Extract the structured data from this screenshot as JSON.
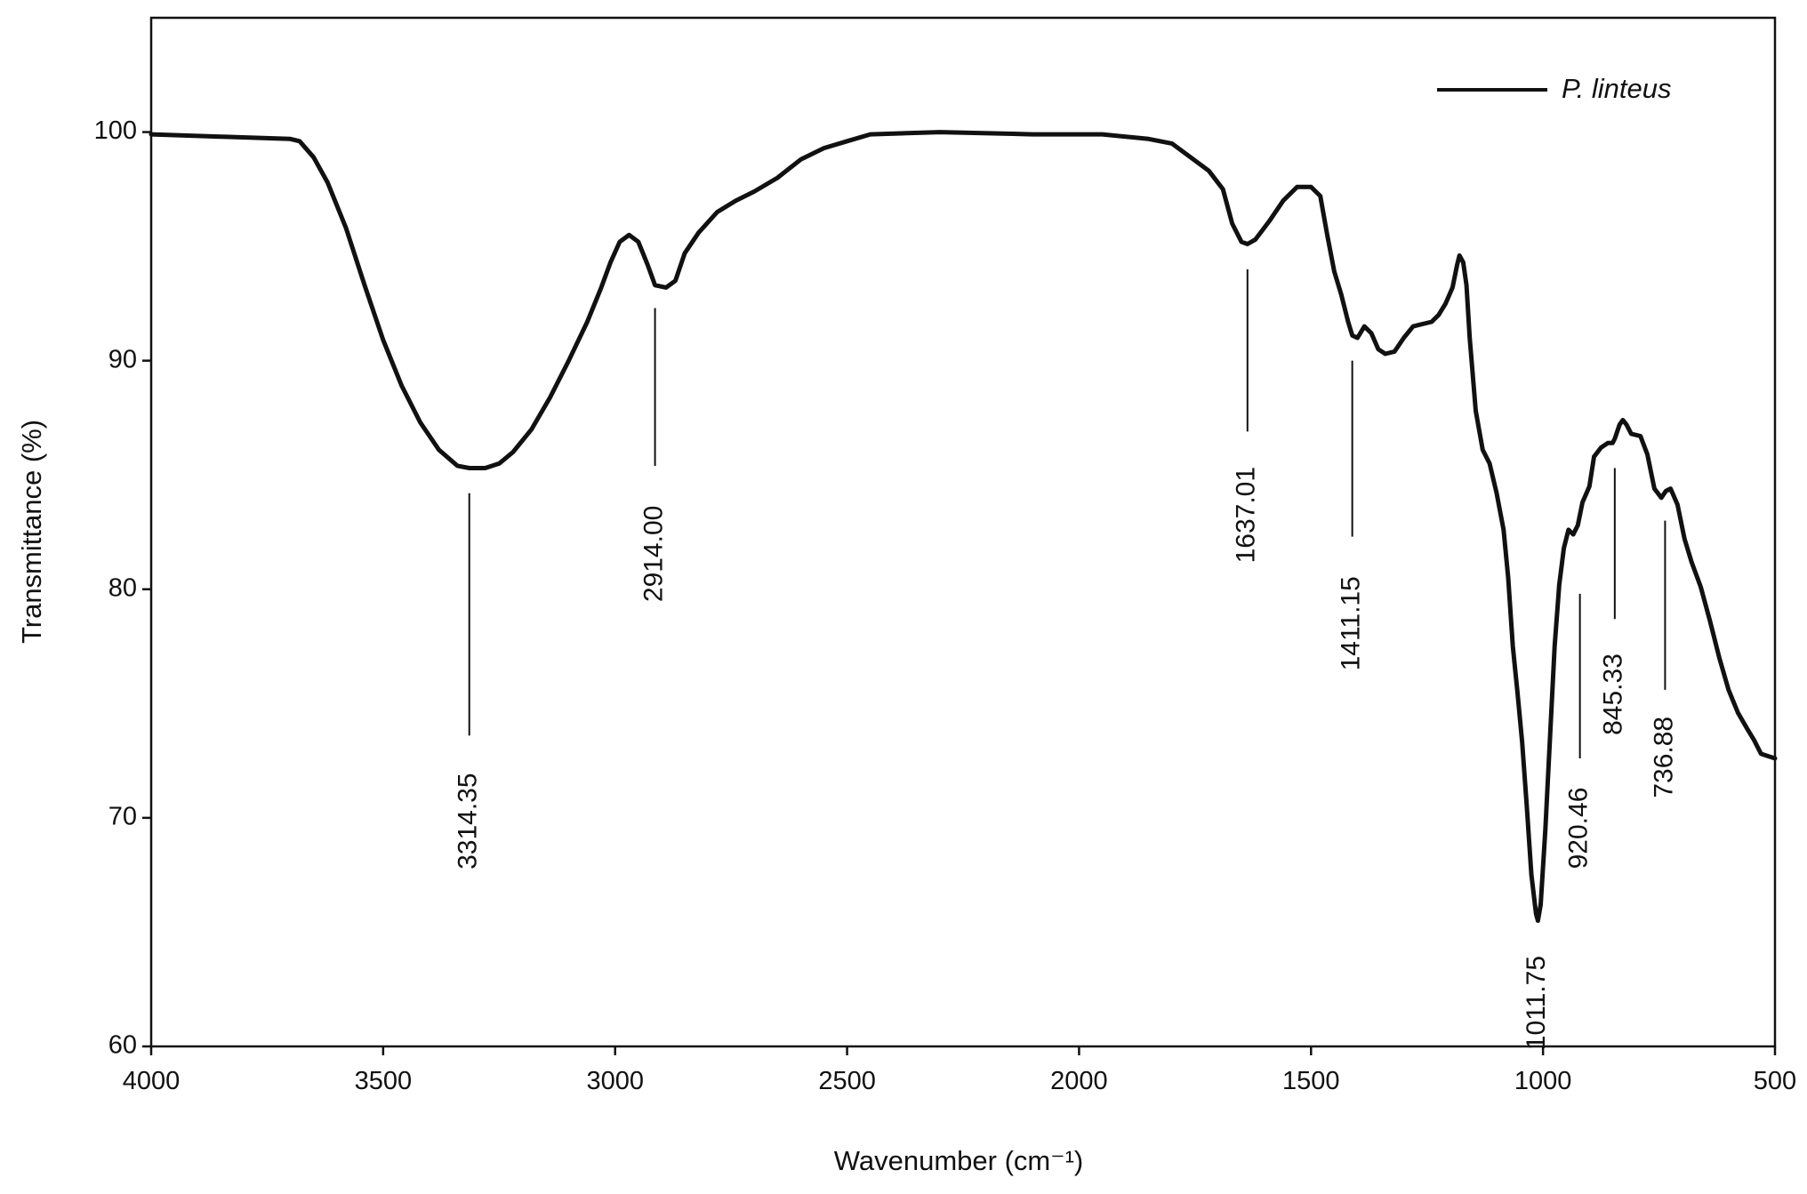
{
  "chart_data": {
    "type": "line",
    "title": "",
    "xlabel": "Wavenumber (cm⁻¹)",
    "ylabel": "Transmittance (%)",
    "xlim": [
      4000,
      500
    ],
    "ylim": [
      60,
      105
    ],
    "x_reversed": true,
    "grid": false,
    "legend_position": "top-right",
    "x_ticks": [
      {
        "value": 4000,
        "label": "4000"
      },
      {
        "value": 3500,
        "label": "3500"
      },
      {
        "value": 3000,
        "label": "3000"
      },
      {
        "value": 2500,
        "label": "2500"
      },
      {
        "value": 2000,
        "label": "2000"
      },
      {
        "value": 1500,
        "label": "1500"
      },
      {
        "value": 1000,
        "label": "1000"
      },
      {
        "value": 500,
        "label": "500"
      }
    ],
    "y_ticks": [
      {
        "value": 60,
        "label": "60"
      },
      {
        "value": 70,
        "label": "70"
      },
      {
        "value": 80,
        "label": "80"
      },
      {
        "value": 90,
        "label": "90"
      },
      {
        "value": 100,
        "label": "100"
      }
    ],
    "series": [
      {
        "name": "P. linteus",
        "color": "#111111",
        "points": [
          [
            4000,
            99.9
          ],
          [
            3850,
            99.8
          ],
          [
            3700,
            99.7
          ],
          [
            3680,
            99.6
          ],
          [
            3650,
            98.9
          ],
          [
            3620,
            97.8
          ],
          [
            3580,
            95.8
          ],
          [
            3540,
            93.3
          ],
          [
            3500,
            90.9
          ],
          [
            3460,
            88.9
          ],
          [
            3420,
            87.3
          ],
          [
            3380,
            86.1
          ],
          [
            3340,
            85.4
          ],
          [
            3314,
            85.3
          ],
          [
            3280,
            85.3
          ],
          [
            3250,
            85.5
          ],
          [
            3220,
            86.0
          ],
          [
            3180,
            87.0
          ],
          [
            3140,
            88.4
          ],
          [
            3100,
            90.0
          ],
          [
            3060,
            91.7
          ],
          [
            3030,
            93.2
          ],
          [
            3010,
            94.3
          ],
          [
            2990,
            95.2
          ],
          [
            2970,
            95.5
          ],
          [
            2950,
            95.2
          ],
          [
            2930,
            94.2
          ],
          [
            2914,
            93.3
          ],
          [
            2890,
            93.2
          ],
          [
            2870,
            93.5
          ],
          [
            2850,
            94.7
          ],
          [
            2820,
            95.6
          ],
          [
            2780,
            96.5
          ],
          [
            2740,
            97.0
          ],
          [
            2700,
            97.4
          ],
          [
            2650,
            98.0
          ],
          [
            2600,
            98.8
          ],
          [
            2550,
            99.3
          ],
          [
            2500,
            99.6
          ],
          [
            2450,
            99.9
          ],
          [
            2300,
            100.0
          ],
          [
            2100,
            99.9
          ],
          [
            1950,
            99.9
          ],
          [
            1850,
            99.7
          ],
          [
            1800,
            99.5
          ],
          [
            1760,
            98.9
          ],
          [
            1720,
            98.3
          ],
          [
            1690,
            97.5
          ],
          [
            1670,
            96.0
          ],
          [
            1650,
            95.2
          ],
          [
            1637,
            95.1
          ],
          [
            1620,
            95.3
          ],
          [
            1590,
            96.1
          ],
          [
            1560,
            97.0
          ],
          [
            1530,
            97.6
          ],
          [
            1500,
            97.6
          ],
          [
            1480,
            97.2
          ],
          [
            1465,
            95.5
          ],
          [
            1450,
            93.9
          ],
          [
            1435,
            92.9
          ],
          [
            1420,
            91.7
          ],
          [
            1411,
            91.1
          ],
          [
            1400,
            91.0
          ],
          [
            1385,
            91.5
          ],
          [
            1370,
            91.2
          ],
          [
            1355,
            90.5
          ],
          [
            1340,
            90.3
          ],
          [
            1320,
            90.4
          ],
          [
            1300,
            91.0
          ],
          [
            1280,
            91.5
          ],
          [
            1260,
            91.6
          ],
          [
            1240,
            91.7
          ],
          [
            1225,
            92.0
          ],
          [
            1210,
            92.5
          ],
          [
            1195,
            93.2
          ],
          [
            1185,
            94.2
          ],
          [
            1180,
            94.6
          ],
          [
            1172,
            94.3
          ],
          [
            1165,
            93.3
          ],
          [
            1158,
            91.0
          ],
          [
            1145,
            87.8
          ],
          [
            1130,
            86.1
          ],
          [
            1115,
            85.5
          ],
          [
            1100,
            84.2
          ],
          [
            1085,
            82.6
          ],
          [
            1075,
            80.5
          ],
          [
            1065,
            77.5
          ],
          [
            1055,
            75.5
          ],
          [
            1045,
            73.3
          ],
          [
            1035,
            70.5
          ],
          [
            1025,
            67.5
          ],
          [
            1015,
            65.8
          ],
          [
            1011,
            65.5
          ],
          [
            1005,
            66.2
          ],
          [
            995,
            69.5
          ],
          [
            985,
            73.5
          ],
          [
            975,
            77.5
          ],
          [
            965,
            80.2
          ],
          [
            955,
            81.8
          ],
          [
            945,
            82.6
          ],
          [
            935,
            82.4
          ],
          [
            925,
            82.8
          ],
          [
            915,
            83.8
          ],
          [
            900,
            84.5
          ],
          [
            890,
            85.8
          ],
          [
            875,
            86.2
          ],
          [
            860,
            86.4
          ],
          [
            850,
            86.4
          ],
          [
            845,
            86.6
          ],
          [
            835,
            87.2
          ],
          [
            828,
            87.4
          ],
          [
            820,
            87.2
          ],
          [
            810,
            86.8
          ],
          [
            790,
            86.7
          ],
          [
            775,
            85.9
          ],
          [
            760,
            84.4
          ],
          [
            745,
            84.0
          ],
          [
            735,
            84.3
          ],
          [
            725,
            84.4
          ],
          [
            710,
            83.7
          ],
          [
            695,
            82.2
          ],
          [
            680,
            81.2
          ],
          [
            660,
            80.1
          ],
          [
            640,
            78.6
          ],
          [
            620,
            77.0
          ],
          [
            600,
            75.6
          ],
          [
            580,
            74.6
          ],
          [
            560,
            73.9
          ],
          [
            545,
            73.4
          ],
          [
            530,
            72.8
          ],
          [
            515,
            72.7
          ],
          [
            500,
            72.6
          ]
        ]
      }
    ],
    "annotations": [
      {
        "label": "3314.35",
        "x": 3314.35,
        "line_top": 84.2,
        "line_bottom": 73.6,
        "text_from": 73.1,
        "text_to": 66.6
      },
      {
        "label": "2914.00",
        "x": 2914.0,
        "line_top": 92.3,
        "line_bottom": 85.4,
        "text_from": 84.9,
        "text_to": 78.2
      },
      {
        "label": "1637.01",
        "x": 1637.01,
        "line_top": 94.0,
        "line_bottom": 86.9,
        "text_from": 86.4,
        "text_to": 80.1
      },
      {
        "label": "1411.15",
        "x": 1411.15,
        "line_top": 90.0,
        "line_bottom": 82.3,
        "text_from": 81.8,
        "text_to": 75.2
      },
      {
        "label": "1011.75",
        "x": 1011.75,
        "line_top": null,
        "line_bottom": null,
        "text_from": 64.9,
        "text_to": 58.9
      },
      {
        "label": "920.46",
        "x": 920.46,
        "line_top": 79.8,
        "line_bottom": 72.6,
        "text_from": 72.1,
        "text_to": 67.0
      },
      {
        "label": "845.33",
        "x": 845.33,
        "line_top": 85.3,
        "line_bottom": 78.7,
        "text_from": 78.2,
        "text_to": 72.6
      },
      {
        "label": "736.88",
        "x": 736.88,
        "line_top": 83.0,
        "line_bottom": 75.6,
        "text_from": 75.1,
        "text_to": 70.2
      }
    ]
  }
}
